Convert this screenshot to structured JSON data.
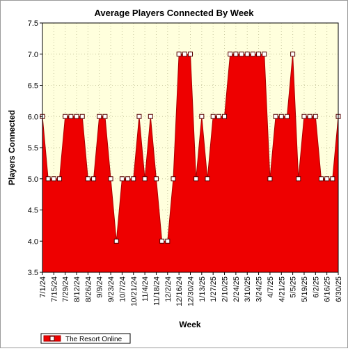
{
  "chart_data": {
    "type": "area",
    "title": "Average Players Connected By Week",
    "xlabel": "Week",
    "ylabel": "Players Connected",
    "ylim": [
      3.5,
      7.5
    ],
    "yticks": [
      "3.5",
      "4.0",
      "4.5",
      "5.0",
      "5.5",
      "6.0",
      "6.5",
      "7.0",
      "7.5"
    ],
    "grid": true,
    "legend_position": "bottom-left",
    "colors": {
      "fill": "#ee0000",
      "line": "#aa0000",
      "plot_bg": "#ffffdd",
      "grid": "#c8c8a0"
    },
    "tick_labels": [
      "7/1/24",
      "7/15/24",
      "7/29/24",
      "8/12/24",
      "8/26/24",
      "9/9/24",
      "9/23/24",
      "10/7/24",
      "10/21/24",
      "11/4/24",
      "11/18/24",
      "12/2/24",
      "12/16/24",
      "12/30/24",
      "1/13/25",
      "1/27/25",
      "2/10/25",
      "2/24/25",
      "3/10/25",
      "3/24/25",
      "4/7/25",
      "4/21/25",
      "5/5/25",
      "5/19/25",
      "6/2/25",
      "6/16/25",
      "6/30/25"
    ],
    "series": [
      {
        "name": "The Resort Online",
        "x": [
          "7/1/24",
          "7/8/24",
          "7/15/24",
          "7/22/24",
          "7/29/24",
          "8/5/24",
          "8/12/24",
          "8/19/24",
          "8/26/24",
          "9/2/24",
          "9/9/24",
          "9/16/24",
          "9/23/24",
          "9/30/24",
          "10/7/24",
          "10/14/24",
          "10/21/24",
          "10/28/24",
          "11/4/24",
          "11/11/24",
          "11/18/24",
          "11/25/24",
          "12/2/24",
          "12/9/24",
          "12/16/24",
          "12/23/24",
          "12/30/24",
          "1/6/25",
          "1/13/25",
          "1/20/25",
          "1/27/25",
          "2/3/25",
          "2/10/25",
          "2/17/25",
          "2/24/25",
          "3/3/25",
          "3/10/25",
          "3/17/25",
          "3/24/25",
          "3/31/25",
          "4/7/25",
          "4/14/25",
          "4/21/25",
          "4/28/25",
          "5/5/25",
          "5/12/25",
          "5/19/25",
          "5/26/25",
          "6/2/25",
          "6/9/25",
          "6/16/25",
          "6/23/25",
          "6/30/25"
        ],
        "values": [
          6.0,
          5.0,
          5.0,
          5.0,
          6.0,
          6.0,
          6.0,
          6.0,
          5.0,
          5.0,
          6.0,
          6.0,
          5.0,
          4.0,
          5.0,
          5.0,
          5.0,
          6.0,
          5.0,
          6.0,
          5.0,
          4.0,
          4.0,
          5.0,
          7.0,
          7.0,
          7.0,
          5.0,
          6.0,
          5.0,
          6.0,
          6.0,
          6.0,
          7.0,
          7.0,
          7.0,
          7.0,
          7.0,
          7.0,
          7.0,
          5.0,
          6.0,
          6.0,
          6.0,
          7.0,
          5.0,
          6.0,
          6.0,
          6.0,
          5.0,
          5.0,
          5.0,
          6.0
        ]
      }
    ]
  }
}
